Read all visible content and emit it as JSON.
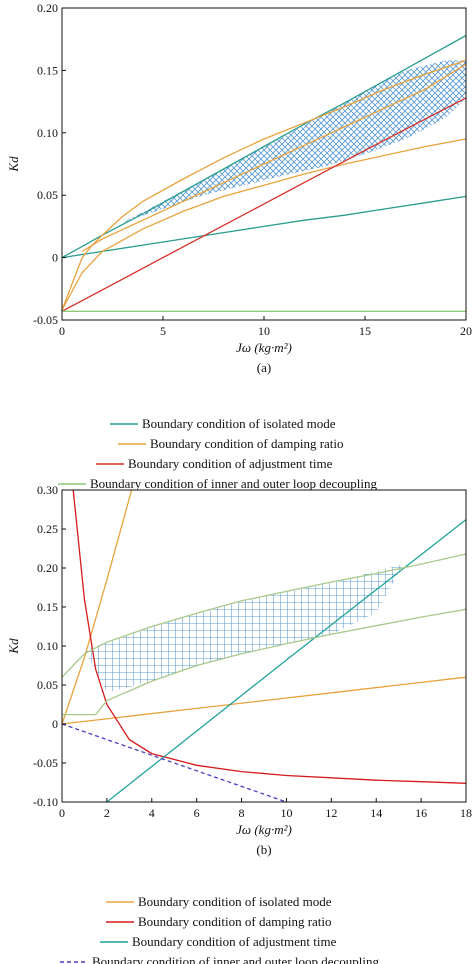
{
  "chart_data": [
    {
      "type": "line",
      "panel_label": "(a)",
      "xlabel": "Jω (kg·m²)",
      "ylabel": "Kd",
      "xlim": [
        0,
        20
      ],
      "ylim": [
        -0.05,
        0.2
      ],
      "x_ticks": [
        0,
        5,
        10,
        15,
        20
      ],
      "y_ticks": [
        -0.05,
        0,
        0.05,
        0.1,
        0.15,
        0.2
      ],
      "x_tick_labels": [
        "0",
        "5",
        "10",
        "15",
        "20"
      ],
      "y_tick_labels": [
        "-0.05",
        "0",
        "0.05",
        "0.10",
        "0.15",
        "0.20"
      ],
      "grid": false,
      "legend_position": "below",
      "series": [
        {
          "name": "Boundary condition of isolated mode",
          "color": "#2a9d8f",
          "x": [
            0,
            2,
            4,
            6,
            8,
            10,
            12,
            14,
            16,
            18,
            20
          ],
          "y": [
            0,
            0.005,
            0.01,
            0.015,
            0.02,
            0.025,
            0.03,
            0.034,
            0.039,
            0.044,
            0.049
          ]
        },
        {
          "name": "Boundary condition of isolated mode",
          "color": "#2a9d8f",
          "x": [
            0,
            1,
            2,
            4,
            6,
            8,
            10,
            12,
            14,
            16,
            18,
            20
          ],
          "y": [
            0,
            0.009,
            0.018,
            0.035,
            0.053,
            0.071,
            0.089,
            0.107,
            0.124,
            0.142,
            0.16,
            0.178
          ]
        },
        {
          "name": "Boundary condition of damping ratio",
          "color": "#e8a33d",
          "x": [
            0,
            1,
            1.5,
            2,
            3,
            4,
            6,
            8,
            10,
            12,
            14,
            16,
            18,
            20
          ],
          "y": [
            -0.042,
            0.0,
            0.01,
            0.018,
            0.033,
            0.045,
            0.063,
            0.08,
            0.095,
            0.108,
            0.121,
            0.135,
            0.147,
            0.158
          ]
        },
        {
          "name": "Boundary condition of damping ratio",
          "color": "#e8a33d",
          "x": [
            0,
            1,
            2,
            4,
            6,
            8,
            10,
            12,
            14,
            16,
            18,
            20
          ],
          "y": [
            -0.042,
            -0.012,
            0.005,
            0.023,
            0.037,
            0.049,
            0.058,
            0.067,
            0.075,
            0.082,
            0.089,
            0.095
          ]
        },
        {
          "name": "Boundary condition of damping ratio",
          "color": "#e8a33d",
          "x": [
            1,
            2,
            4,
            6,
            8,
            10,
            12,
            14,
            16,
            18,
            20
          ],
          "y": [
            0.005,
            0.015,
            0.03,
            0.045,
            0.06,
            0.075,
            0.09,
            0.105,
            0.12,
            0.135,
            0.155
          ]
        },
        {
          "name": "Boundary condition of adjustment time",
          "color": "#d73027",
          "x": [
            0,
            5,
            10,
            15,
            20
          ],
          "y": [
            -0.043,
            0.0,
            0.043,
            0.086,
            0.128
          ]
        },
        {
          "name": "Boundary condition of inner and outer loop decoupling",
          "color": "#8fc97a",
          "x": [
            0,
            20
          ],
          "y": [
            -0.043,
            -0.043
          ]
        }
      ],
      "shaded_region": {
        "fill": "crosshatch",
        "color": "#5b9bd5",
        "x": [
          1.5,
          3,
          5,
          7,
          9,
          11,
          13,
          15,
          17,
          19,
          20
        ],
        "upper": [
          0.012,
          0.028,
          0.045,
          0.062,
          0.08,
          0.097,
          0.115,
          0.133,
          0.15,
          0.158,
          0.158
        ],
        "lower": [
          0.012,
          0.028,
          0.039,
          0.05,
          0.058,
          0.066,
          0.073,
          0.083,
          0.095,
          0.112,
          0.128
        ]
      }
    },
    {
      "type": "line",
      "panel_label": "(b)",
      "xlabel": "Jω (kg·m²)",
      "ylabel": "Kd",
      "xlim": [
        0,
        18
      ],
      "ylim": [
        -0.1,
        0.3
      ],
      "x_ticks": [
        0,
        2,
        4,
        6,
        8,
        10,
        12,
        14,
        16,
        18
      ],
      "y_ticks": [
        -0.1,
        -0.05,
        0,
        0.05,
        0.1,
        0.15,
        0.2,
        0.25,
        0.3
      ],
      "x_tick_labels": [
        "0",
        "2",
        "4",
        "6",
        "8",
        "10",
        "12",
        "14",
        "16",
        "18"
      ],
      "y_tick_labels": [
        "-0.10",
        "-0.05",
        "0",
        "0.05",
        "0.10",
        "0.15",
        "0.20",
        "0.25",
        "0.30"
      ],
      "grid": false,
      "legend_position": "below",
      "series": [
        {
          "name": "Boundary condition of isolated mode",
          "color": "#e8a33d",
          "x": [
            0,
            3,
            6,
            9,
            12,
            15,
            18
          ],
          "y": [
            0.0,
            0.01,
            0.02,
            0.03,
            0.04,
            0.05,
            0.06
          ]
        },
        {
          "name": "Boundary condition of isolated mode",
          "color": "#e8a33d",
          "x": [
            0,
            1,
            2,
            3.1
          ],
          "y": [
            0.0,
            0.085,
            0.185,
            0.3
          ]
        },
        {
          "name": "Boundary condition of damping ratio",
          "color": "#d7191c",
          "x": [
            0.5,
            1,
            1.5,
            2,
            3,
            4,
            6,
            8,
            10,
            12,
            14,
            16,
            18
          ],
          "y": [
            0.3,
            0.16,
            0.07,
            0.025,
            -0.02,
            -0.038,
            -0.053,
            -0.061,
            -0.066,
            -0.069,
            -0.072,
            -0.074,
            -0.076
          ]
        },
        {
          "name": "Boundary condition of adjustment time",
          "color": "#1fa39a",
          "x": [
            2,
            6,
            10,
            14,
            18
          ],
          "y": [
            -0.1,
            -0.009,
            0.082,
            0.172,
            0.262
          ]
        },
        {
          "name": "Boundary condition of inner and outer loop decoupling",
          "color": "#4b3fbf",
          "dashed": true,
          "x": [
            0,
            2,
            4,
            6,
            8,
            10
          ],
          "y": [
            0.0,
            -0.02,
            -0.04,
            -0.06,
            -0.08,
            -0.1
          ]
        },
        {
          "name": "",
          "color": "#a9c98a",
          "x": [
            0,
            0.5,
            1,
            2,
            4,
            6,
            8,
            10,
            12,
            14,
            16,
            18
          ],
          "y": [
            0.06,
            0.075,
            0.09,
            0.105,
            0.125,
            0.142,
            0.158,
            0.17,
            0.182,
            0.193,
            0.205,
            0.218
          ]
        },
        {
          "name": "",
          "color": "#a9c98a",
          "x": [
            0,
            1.5,
            2,
            4,
            6,
            8,
            10,
            12,
            14,
            16,
            18
          ],
          "y": [
            0.012,
            0.012,
            0.03,
            0.055,
            0.075,
            0.09,
            0.103,
            0.115,
            0.126,
            0.137,
            0.147
          ]
        }
      ],
      "shaded_region": {
        "fill": "grid",
        "color": "#5b9bd5",
        "x": [
          1,
          2,
          4,
          6,
          8,
          10,
          12,
          14,
          15.2
        ],
        "upper": [
          0.095,
          0.105,
          0.125,
          0.142,
          0.158,
          0.17,
          0.182,
          0.196,
          0.205
        ],
        "lower": [
          0.095,
          0.04,
          0.055,
          0.075,
          0.09,
          0.103,
          0.115,
          0.143,
          0.205
        ]
      }
    }
  ],
  "legend_a": [
    {
      "label": "Boundary condition of isolated mode",
      "color": "#2a9d8f",
      "dashed": false
    },
    {
      "label": "Boundary condition of damping ratio",
      "color": "#e8a33d",
      "dashed": false
    },
    {
      "label": "Boundary condition of adjustment time",
      "color": "#d73027",
      "dashed": false
    },
    {
      "label": "Boundary condition of inner and outer loop decoupling",
      "color": "#8fc97a",
      "dashed": false
    }
  ],
  "legend_b": [
    {
      "label": "Boundary condition of isolated mode",
      "color": "#e8a33d",
      "dashed": false
    },
    {
      "label": "Boundary condition of damping ratio",
      "color": "#d7191c",
      "dashed": false
    },
    {
      "label": "Boundary condition of adjustment time",
      "color": "#1fa39a",
      "dashed": false
    },
    {
      "label": "Boundary condition of inner and outer loop decoupling",
      "color": "#4b3fbf",
      "dashed": true
    }
  ]
}
